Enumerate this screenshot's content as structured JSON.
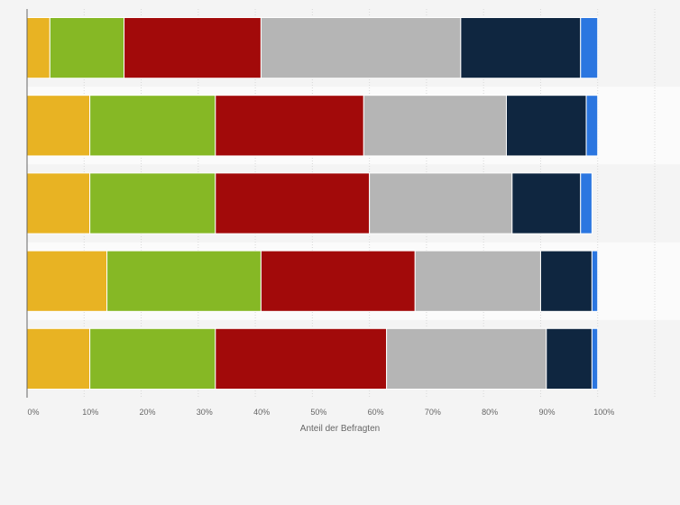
{
  "chart_data": {
    "type": "bar",
    "orientation": "horizontal",
    "stacked": true,
    "xlabel": "Anteil der Befragten",
    "xlim": [
      0,
      110
    ],
    "x_ticks": [
      "0%",
      "10%",
      "20%",
      "30%",
      "40%",
      "50%",
      "60%",
      "70%",
      "80%",
      "90%",
      "100%"
    ],
    "grid": true,
    "categories": [
      "",
      "",
      "",
      "",
      ""
    ],
    "series": [
      {
        "color": "#e8b323",
        "values": [
          4,
          11,
          11,
          14,
          11
        ]
      },
      {
        "color": "#86b825",
        "values": [
          13,
          22,
          22,
          27,
          22
        ]
      },
      {
        "color": "#a20a0a",
        "values": [
          24,
          26,
          27,
          27,
          30
        ]
      },
      {
        "color": "#b5b5b5",
        "values": [
          35,
          25,
          25,
          22,
          28
        ]
      },
      {
        "color": "#0f2640",
        "values": [
          21,
          14,
          12,
          9,
          8
        ]
      },
      {
        "color": "#2b76e0",
        "values": [
          3,
          2,
          2,
          1,
          1
        ]
      }
    ]
  }
}
